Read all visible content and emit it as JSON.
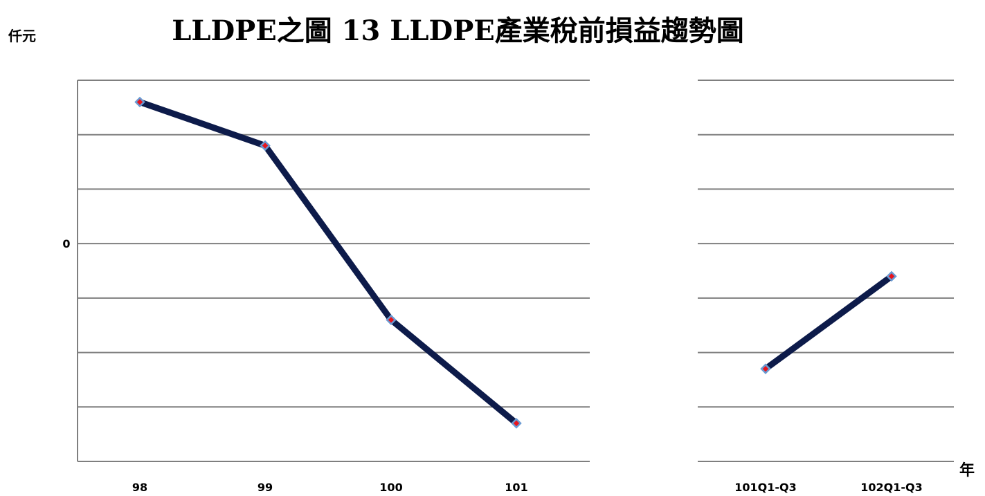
{
  "chart_data": {
    "type": "line",
    "title": "LLDPE之圖 13  LLDPE產業稅前損益趨勢圖",
    "ylabel": "仟元",
    "xlabel": "年",
    "grid": true,
    "y_ticks": [
      "0"
    ],
    "panels": [
      {
        "categories": [
          "98",
          "99",
          "100",
          "101"
        ],
        "values": [
          2.6,
          1.8,
          -1.4,
          -3.3
        ]
      },
      {
        "categories": [
          "101Q1-Q3",
          "102Q1-Q3"
        ],
        "values": [
          -2.3,
          -0.6
        ]
      }
    ],
    "colors": {
      "line": "#0d1b4a",
      "marker_fill": "#e8141c",
      "marker_edge": "#6a9ad2",
      "grid": "#7f7f7f"
    }
  }
}
